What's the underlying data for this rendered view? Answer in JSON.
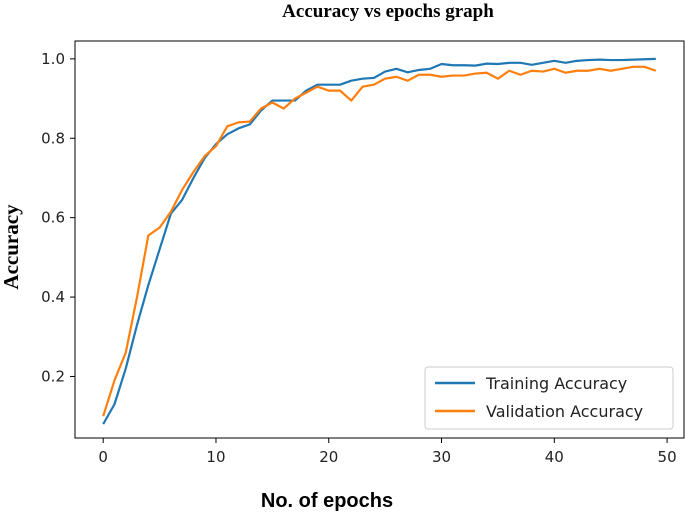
{
  "chart_data": {
    "type": "line",
    "title": "Accuracy vs epochs graph",
    "xlabel": "No. of epochs",
    "ylabel": "Accuracy",
    "xlim": [
      -2.5,
      51.5
    ],
    "ylim": [
      0.045,
      1.045
    ],
    "xticks": [
      0,
      10,
      20,
      30,
      40,
      50
    ],
    "yticks": [
      0.2,
      0.4,
      0.6,
      0.8,
      1.0
    ],
    "ytick_labels": [
      "0.2",
      "0.4",
      "0.6",
      "0.8",
      "1.0"
    ],
    "grid": false,
    "legend_position": "lower-right",
    "x": [
      0,
      1,
      2,
      3,
      4,
      5,
      6,
      7,
      8,
      9,
      10,
      11,
      12,
      13,
      14,
      15,
      16,
      17,
      18,
      19,
      20,
      21,
      22,
      23,
      24,
      25,
      26,
      27,
      28,
      29,
      30,
      31,
      32,
      33,
      34,
      35,
      36,
      37,
      38,
      39,
      40,
      41,
      42,
      43,
      44,
      45,
      46,
      47,
      48,
      49
    ],
    "series": [
      {
        "name": "Training Accuracy",
        "color": "#1f77b4",
        "values": [
          0.08,
          0.13,
          0.22,
          0.33,
          0.43,
          0.52,
          0.61,
          0.645,
          0.7,
          0.75,
          0.785,
          0.81,
          0.825,
          0.835,
          0.87,
          0.895,
          0.895,
          0.895,
          0.92,
          0.935,
          0.935,
          0.935,
          0.945,
          0.95,
          0.952,
          0.968,
          0.975,
          0.966,
          0.972,
          0.975,
          0.987,
          0.984,
          0.984,
          0.983,
          0.988,
          0.987,
          0.99,
          0.99,
          0.985,
          0.99,
          0.995,
          0.99,
          0.995,
          0.997,
          0.998,
          0.997,
          0.997,
          0.998,
          0.999,
          1.0
        ]
      },
      {
        "name": "Validation Accuracy",
        "color": "#ff7f0e",
        "values": [
          0.1,
          0.19,
          0.26,
          0.4,
          0.555,
          0.575,
          0.615,
          0.67,
          0.715,
          0.755,
          0.78,
          0.83,
          0.84,
          0.842,
          0.875,
          0.89,
          0.875,
          0.9,
          0.915,
          0.93,
          0.92,
          0.92,
          0.895,
          0.93,
          0.935,
          0.95,
          0.955,
          0.945,
          0.96,
          0.96,
          0.955,
          0.958,
          0.958,
          0.963,
          0.965,
          0.95,
          0.97,
          0.96,
          0.97,
          0.968,
          0.975,
          0.965,
          0.97,
          0.97,
          0.975,
          0.97,
          0.975,
          0.98,
          0.98,
          0.97
        ]
      }
    ]
  }
}
